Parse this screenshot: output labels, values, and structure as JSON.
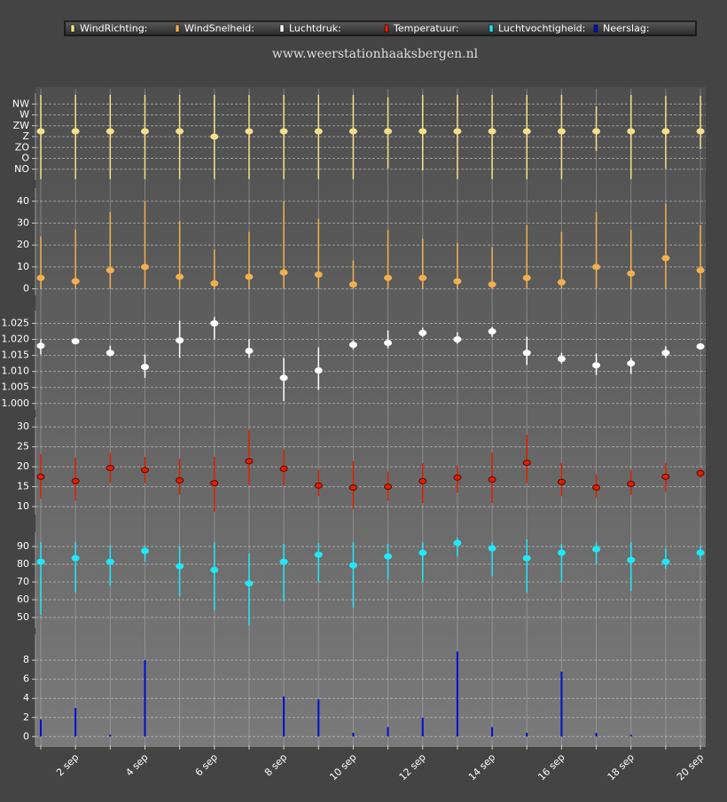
{
  "chart_data": {
    "type": "panels",
    "subtitle": "www.weerstationhaaksbergen.nl",
    "categories": [
      null,
      "2 sep",
      null,
      "4 sep",
      null,
      "6 sep",
      null,
      "8 sep",
      null,
      "10 sep",
      null,
      "12 sep",
      null,
      "14 sep",
      null,
      "16 sep",
      null,
      "18 sep",
      null,
      "20 sep"
    ],
    "grid": true,
    "panels": [
      {
        "name": "WindRichting:",
        "type": "range",
        "color": "#f5e08a",
        "outline": "#f5e08a",
        "ylim": [
          0,
          360
        ],
        "yticks": [
          {
            "value": 45,
            "label": "NO"
          },
          {
            "value": 90,
            "label": "O"
          },
          {
            "value": 135,
            "label": "ZO"
          },
          {
            "value": 180,
            "label": "Z"
          },
          {
            "value": 225,
            "label": "ZW"
          },
          {
            "value": 270,
            "label": "W"
          },
          {
            "value": 315,
            "label": "NW"
          }
        ],
        "values": [
          202,
          202,
          202,
          202,
          202,
          180,
          202,
          202,
          202,
          202,
          202,
          202,
          202,
          202,
          202,
          202,
          202,
          202,
          202,
          202
        ],
        "min": [
          4,
          4,
          4,
          4,
          4,
          4,
          4,
          4,
          4,
          4,
          48,
          40,
          4,
          4,
          4,
          4,
          121,
          4,
          48,
          129
        ],
        "max": [
          353,
          353,
          353,
          353,
          353,
          353,
          353,
          353,
          353,
          353,
          342,
          353,
          353,
          353,
          353,
          353,
          305,
          353,
          349,
          349
        ]
      },
      {
        "name": "WindSnelheid:",
        "type": "range",
        "color": "#f0b050",
        "outline": "#f0b050",
        "ylim": [
          -3,
          46
        ],
        "yticks": [
          0,
          10,
          20,
          30,
          40
        ],
        "values": [
          5,
          3.5,
          8.5,
          10,
          5.5,
          2.5,
          5.5,
          7.5,
          6.5,
          2,
          5,
          5,
          3.5,
          2,
          5,
          3,
          10,
          7,
          14,
          8.5
        ],
        "min": [
          0,
          0,
          0,
          0,
          0,
          0,
          0,
          0,
          0,
          0,
          0,
          0,
          0,
          0,
          0,
          0,
          0,
          0,
          0,
          0
        ],
        "max": [
          24,
          27,
          35,
          40,
          31,
          18,
          26,
          40,
          32,
          13,
          27,
          23,
          21,
          19,
          29,
          26,
          35,
          27,
          39,
          29
        ]
      },
      {
        "name": "Luchtdruk:",
        "type": "range",
        "color": "#ffffff",
        "outline": "#ffffff",
        "ylim": [
          0.998,
          1.029
        ],
        "yticks": [
          {
            "value": 1.0,
            "label": "1.000"
          },
          {
            "value": 1.005,
            "label": "1.005"
          },
          {
            "value": 1.01,
            "label": "1.010"
          },
          {
            "value": 1.015,
            "label": "1.015"
          },
          {
            "value": 1.02,
            "label": "1.020"
          },
          {
            "value": 1.025,
            "label": "1.025"
          }
        ],
        "values": [
          1.018,
          1.0194,
          1.0158,
          1.0114,
          1.0197,
          1.025,
          1.0164,
          1.008,
          1.0103,
          1.0183,
          1.0189,
          1.022,
          1.02,
          1.0225,
          1.0158,
          1.0139,
          1.0119,
          1.0125,
          1.0158,
          1.0178
        ],
        "min": [
          1.0153,
          1.0192,
          1.0147,
          1.008,
          1.0142,
          1.02,
          1.0142,
          1.0008,
          1.0042,
          1.0169,
          1.0172,
          1.0208,
          1.0186,
          1.0208,
          1.012,
          1.0125,
          1.0089,
          1.0092,
          1.0142,
          1.0169
        ],
        "max": [
          1.02,
          1.0197,
          1.018,
          1.0153,
          1.0258,
          1.027,
          1.02,
          1.0142,
          1.0175,
          1.0197,
          1.0228,
          1.0236,
          1.0222,
          1.0239,
          1.0208,
          1.0158,
          1.0156,
          1.0142,
          1.0178,
          1.0186
        ]
      },
      {
        "name": "Temperatuur:",
        "type": "range",
        "color": "#e02000",
        "outline": "#5a0800",
        "ylim": [
          8,
          32.5
        ],
        "yticks": [
          10,
          15,
          20,
          25,
          30
        ],
        "values": [
          17.5,
          16.4,
          19.7,
          19.2,
          16.6,
          15.9,
          21.4,
          19.5,
          15.3,
          14.8,
          15,
          16.4,
          17.3,
          16.8,
          21,
          16.2,
          14.8,
          15.7,
          17.5,
          18.4
        ],
        "min": [
          12,
          11.5,
          15.9,
          15.9,
          13,
          8.7,
          15.3,
          15.3,
          12.6,
          9.3,
          11.5,
          10.9,
          13.5,
          10.9,
          15.9,
          12.6,
          12.2,
          13,
          13.7,
          17.1
        ],
        "max": [
          23.2,
          22.3,
          23.6,
          22.5,
          22,
          22.5,
          29.3,
          24.3,
          19.2,
          21.4,
          18.8,
          20.9,
          20.3,
          23.6,
          28,
          21,
          18.1,
          19.2,
          21,
          19.7
        ]
      },
      {
        "name": "Luchtvochtigheid:",
        "type": "range",
        "color": "#20e8f8",
        "outline": "#20e8f8",
        "ylim": [
          44,
          98
        ],
        "yticks": [
          50,
          60,
          70,
          80,
          90
        ],
        "values": [
          81.4,
          83.4,
          81.4,
          87.5,
          78.9,
          76.8,
          69.2,
          81.4,
          85.4,
          79.4,
          84.4,
          86.5,
          92,
          89,
          83.4,
          86.5,
          88.5,
          82.4,
          81.4,
          86.5
        ],
        "min": [
          51.5,
          64,
          68,
          81.4,
          62,
          54,
          45.4,
          59,
          70,
          55.6,
          71.4,
          70,
          84.4,
          73.3,
          64,
          70,
          80.4,
          65,
          77.3,
          82.4
        ],
        "max": [
          92.5,
          92.5,
          90.5,
          90.5,
          90,
          92.5,
          86,
          91.5,
          92,
          92.5,
          91.5,
          92.5,
          95,
          92.5,
          94,
          91.5,
          92.5,
          92.5,
          89,
          90
        ]
      },
      {
        "name": "Neerslag:",
        "type": "bar",
        "color": "#0010d0",
        "ylim": [
          -0.9,
          10.7
        ],
        "yticks": [
          0,
          2,
          4,
          6,
          8
        ],
        "values": [
          1.8,
          3.0,
          0.2,
          8.0,
          0,
          0,
          0,
          4.2,
          3.9,
          0.4,
          1.0,
          2.0,
          8.9,
          1.0,
          0.4,
          6.8,
          0.4,
          0.2,
          0,
          0
        ]
      }
    ]
  }
}
